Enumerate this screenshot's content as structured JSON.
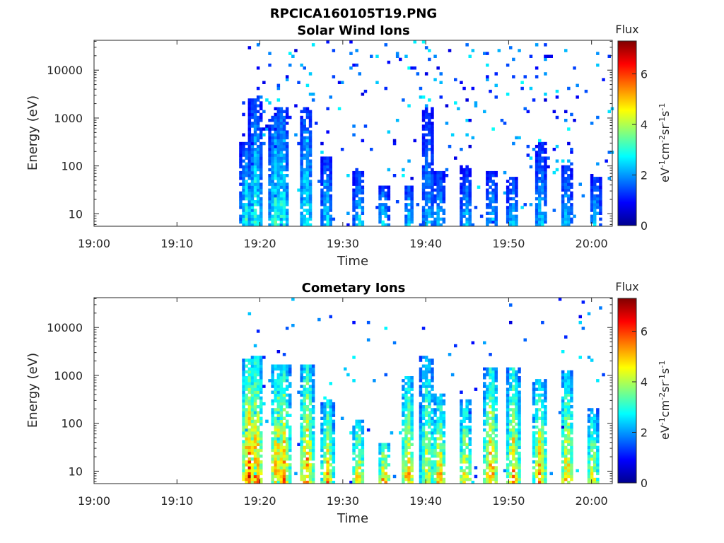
{
  "figure_title": "RPCICA160105T19.PNG",
  "colormap": [
    "#00008f",
    "#0000ff",
    "#0080ff",
    "#00ffff",
    "#80ff80",
    "#ffff00",
    "#ff8000",
    "#ff0000",
    "#800000"
  ],
  "chart_data": [
    {
      "type": "heatmap",
      "title": "Solar Wind Ions",
      "xlabel": "Time",
      "ylabel": "Energy (eV)",
      "x_ticks": [
        "19:00",
        "19:10",
        "19:20",
        "19:30",
        "19:40",
        "19:50",
        "20:00"
      ],
      "xlim_minutes": [
        0,
        62.5
      ],
      "y_ticks": [
        10,
        100,
        1000,
        10000
      ],
      "ylim": [
        5.5,
        42000
      ],
      "y_scale": "log",
      "colorbar": {
        "title": "Flux",
        "label": "eV-1cm-2sr-1s-1",
        "range": [
          0,
          7.3
        ],
        "ticks": [
          0,
          2,
          4,
          6
        ]
      },
      "data_start_minute": 17.5,
      "bursts": [
        {
          "t": 18.2,
          "top_energy": 300,
          "peak_flux": 3.3
        },
        {
          "t": 19.3,
          "top_energy": 2400,
          "peak_flux": 3.4
        },
        {
          "t": 21.7,
          "top_energy": 1100,
          "peak_flux": 3.6
        },
        {
          "t": 22.5,
          "top_energy": 1600,
          "peak_flux": 3.5
        },
        {
          "t": 25.4,
          "top_energy": 1600,
          "peak_flux": 3.4
        },
        {
          "t": 27.9,
          "top_energy": 150,
          "peak_flux": 3.0
        },
        {
          "t": 31.8,
          "top_energy": 80,
          "peak_flux": 3.0
        },
        {
          "t": 34.7,
          "top_energy": 40,
          "peak_flux": 3.0
        },
        {
          "t": 37.8,
          "top_energy": 40,
          "peak_flux": 2.8
        },
        {
          "t": 40.1,
          "top_energy": 1700,
          "peak_flux": 2.6
        },
        {
          "t": 41.5,
          "top_energy": 80,
          "peak_flux": 2.8
        },
        {
          "t": 44.7,
          "top_energy": 100,
          "peak_flux": 2.7
        },
        {
          "t": 47.8,
          "top_energy": 80,
          "peak_flux": 2.8
        },
        {
          "t": 50.3,
          "top_energy": 60,
          "peak_flux": 2.9
        },
        {
          "t": 53.7,
          "top_energy": 300,
          "peak_flux": 2.8
        },
        {
          "t": 56.8,
          "top_energy": 100,
          "peak_flux": 2.9
        },
        {
          "t": 60.3,
          "top_energy": 60,
          "peak_flux": 2.9
        }
      ]
    },
    {
      "type": "heatmap",
      "title": "Cometary Ions",
      "xlabel": "Time",
      "ylabel": "Energy (eV)",
      "x_ticks": [
        "19:00",
        "19:10",
        "19:20",
        "19:30",
        "19:40",
        "19:50",
        "20:00"
      ],
      "xlim_minutes": [
        0,
        62.5
      ],
      "y_ticks": [
        10,
        100,
        1000,
        10000
      ],
      "ylim": [
        5.5,
        42000
      ],
      "y_scale": "log",
      "colorbar": {
        "title": "Flux",
        "label": "eV-1cm-2sr-1s-1",
        "range": [
          0,
          7.3
        ],
        "ticks": [
          0,
          2,
          4,
          6
        ]
      },
      "data_start_minute": 17.5,
      "bursts": [
        {
          "t": 18.5,
          "top_energy": 2200,
          "peak_flux": 6.6
        },
        {
          "t": 19.4,
          "top_energy": 2400,
          "peak_flux": 6.2
        },
        {
          "t": 21.9,
          "top_energy": 1600,
          "peak_flux": 6.0
        },
        {
          "t": 22.7,
          "top_energy": 1700,
          "peak_flux": 6.0
        },
        {
          "t": 25.5,
          "top_energy": 1700,
          "peak_flux": 6.2
        },
        {
          "t": 28.0,
          "top_energy": 300,
          "peak_flux": 5.6
        },
        {
          "t": 31.7,
          "top_energy": 120,
          "peak_flux": 5.8
        },
        {
          "t": 34.8,
          "top_energy": 40,
          "peak_flux": 6.0
        },
        {
          "t": 37.7,
          "top_energy": 1000,
          "peak_flux": 5.8
        },
        {
          "t": 40.0,
          "top_energy": 2400,
          "peak_flux": 5.0
        },
        {
          "t": 41.5,
          "top_energy": 400,
          "peak_flux": 5.7
        },
        {
          "t": 44.6,
          "top_energy": 300,
          "peak_flux": 5.5
        },
        {
          "t": 47.7,
          "top_energy": 1500,
          "peak_flux": 6.1
        },
        {
          "t": 50.4,
          "top_energy": 1500,
          "peak_flux": 5.8
        },
        {
          "t": 53.6,
          "top_energy": 900,
          "peak_flux": 5.8
        },
        {
          "t": 56.9,
          "top_energy": 1200,
          "peak_flux": 5.6
        },
        {
          "t": 60.0,
          "top_energy": 200,
          "peak_flux": 5.2
        }
      ]
    }
  ]
}
